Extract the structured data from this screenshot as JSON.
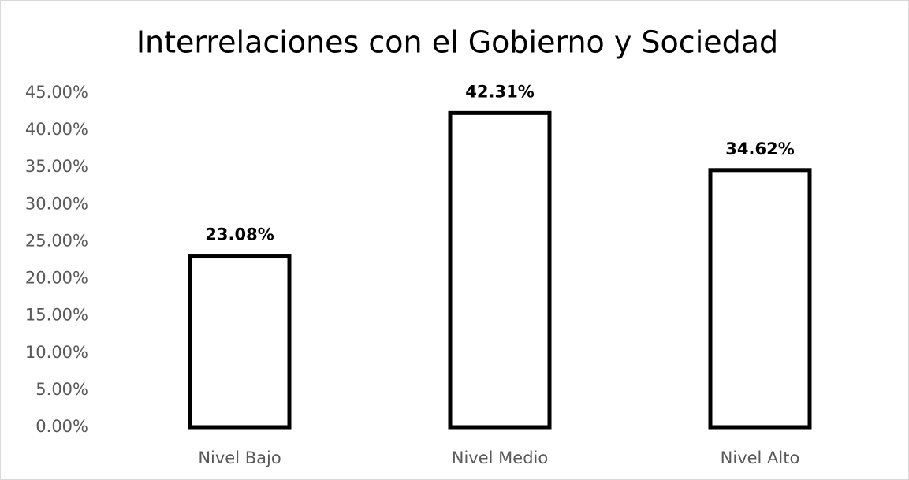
{
  "chart_data": {
    "type": "bar",
    "title": "Interrelaciones con el Gobierno y Sociedad",
    "categories": [
      "Nivel Bajo",
      "Nivel Medio",
      "Nivel Alto"
    ],
    "values": [
      23.08,
      42.31,
      34.62
    ],
    "value_labels": [
      "23.08%",
      "42.31%",
      "34.62%"
    ],
    "color": "#ffffff",
    "edge_color": "#000000",
    "ylim": [
      0,
      45
    ],
    "yticks": [
      {
        "value": 0,
        "label": "0.00%"
      },
      {
        "value": 5,
        "label": "5.00%"
      },
      {
        "value": 10,
        "label": "10.00%"
      },
      {
        "value": 15,
        "label": "15.00%"
      },
      {
        "value": 20,
        "label": "20.00%"
      },
      {
        "value": 25,
        "label": "25.00%"
      },
      {
        "value": 30,
        "label": "30.00%"
      },
      {
        "value": 35,
        "label": "35.00%"
      },
      {
        "value": 40,
        "label": "40.00%"
      },
      {
        "value": 45,
        "label": "45.00%"
      }
    ],
    "grid": false
  }
}
